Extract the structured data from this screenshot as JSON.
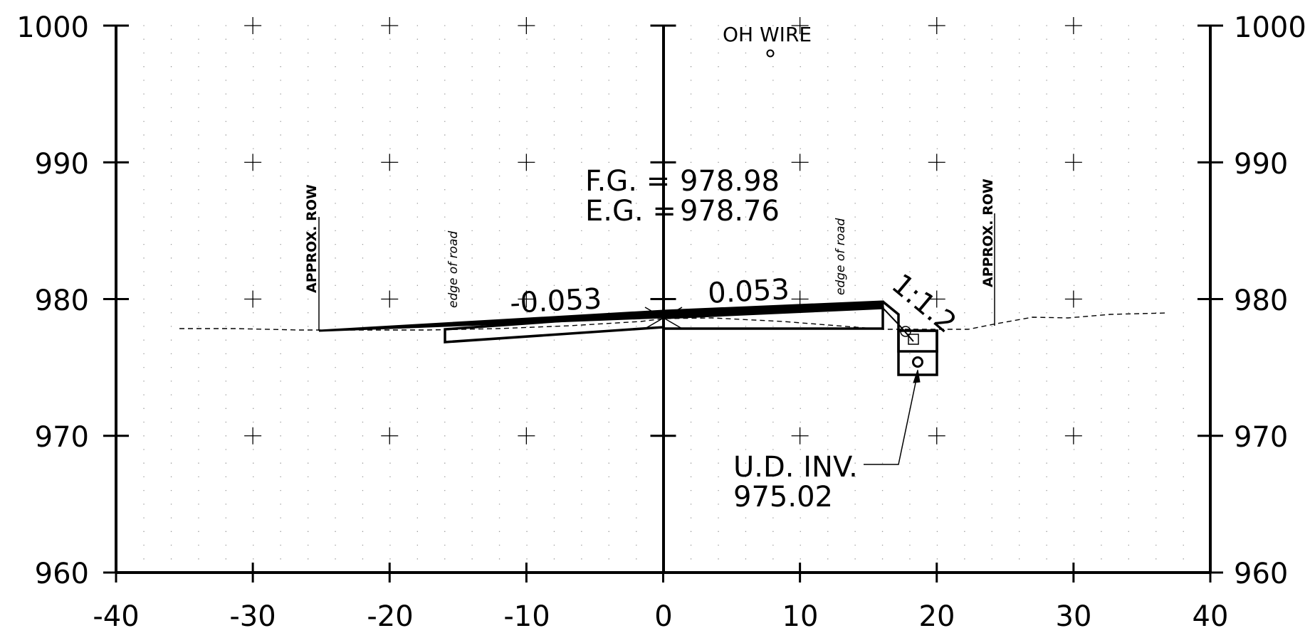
{
  "diagram": {
    "type": "cross-section",
    "x_axis": {
      "range": [
        -40,
        40
      ],
      "ticks": [
        "-40",
        "-30",
        "-20",
        "-10",
        "0",
        "10",
        "20",
        "30",
        "40"
      ]
    },
    "y_axis": {
      "range": [
        960,
        1000
      ],
      "ticks": [
        "960",
        "970",
        "980",
        "990",
        "1000"
      ]
    },
    "grid": true,
    "annotations": {
      "fg_label": "F.G. =",
      "fg_value": "978.98",
      "eg_label": "E.G. =",
      "eg_value": "978.76",
      "slope_left": "-0.053",
      "slope_right": "0.053",
      "side_slope": "1:1.2",
      "oh_wire": "OH WIRE",
      "approx_row_left": "APPROX. ROW",
      "approx_row_right": "APPROX. ROW",
      "edge_of_road_left": "edge of road",
      "edge_of_road_right": "edge of road",
      "ud_inv_label": "U.D. INV.",
      "ud_inv_value": "975.02"
    },
    "colors": {
      "line": "#000000",
      "background": "#ffffff",
      "grid_dot": "#9a9a9a"
    }
  }
}
